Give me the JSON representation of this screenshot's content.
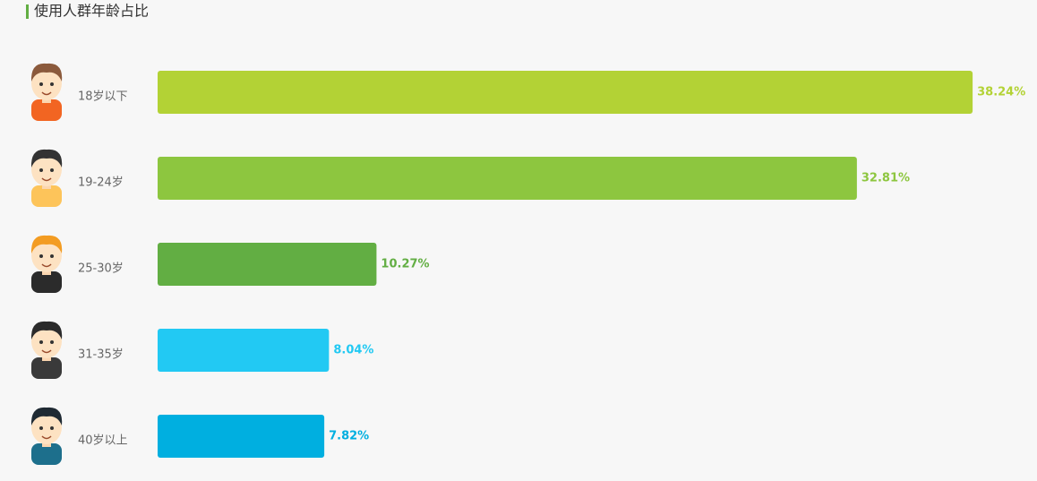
{
  "chart_data": {
    "type": "bar",
    "orientation": "horizontal",
    "title": "使用人群年龄占比",
    "categories": [
      "18岁以下",
      "19-24岁",
      "25-30岁",
      "31-35岁",
      "40岁以上"
    ],
    "values": [
      38.24,
      32.81,
      10.27,
      8.04,
      7.82
    ],
    "value_labels": [
      "38.24%",
      "32.81%",
      "10.27%",
      "8.04%",
      "7.82%"
    ],
    "colors": [
      "#b3d235",
      "#8dc63f",
      "#62ae43",
      "#22c9f3",
      "#00afe0"
    ]
  }
}
